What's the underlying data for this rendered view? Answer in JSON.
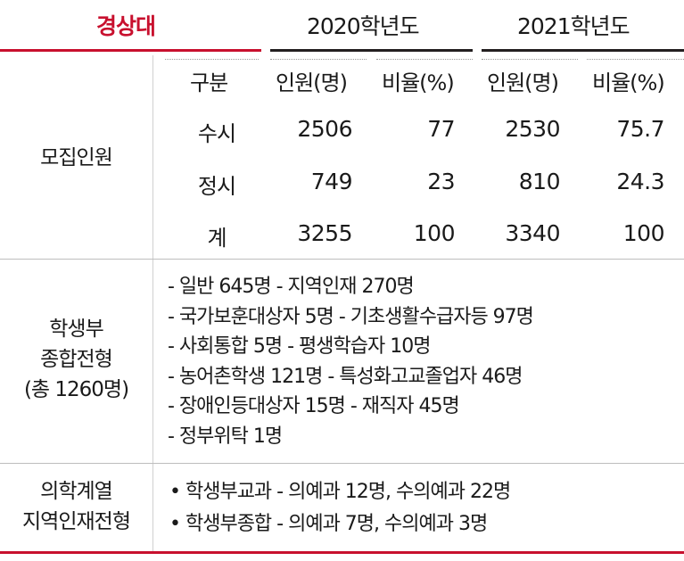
{
  "header": {
    "university": "경상대",
    "year_2020": "2020학년도",
    "year_2021": "2021학년도"
  },
  "columns": {
    "division": "구분",
    "count_2020": "인원(명)",
    "ratio_2020": "비율(%)",
    "count_2021": "인원(명)",
    "ratio_2021": "비율(%)"
  },
  "recruitment": {
    "label": "모집인원",
    "rows": [
      {
        "division": "수시",
        "count_2020": "2506",
        "ratio_2020": "77",
        "count_2021": "2530",
        "ratio_2021": "75.7"
      },
      {
        "division": "정시",
        "count_2020": "749",
        "ratio_2020": "23",
        "count_2021": "810",
        "ratio_2021": "24.3"
      },
      {
        "division": "계",
        "count_2020": "3255",
        "ratio_2020": "100",
        "count_2021": "3340",
        "ratio_2021": "100"
      }
    ]
  },
  "comprehensive": {
    "label_line1": "학생부",
    "label_line2": "종합전형",
    "label_line3": "(총 1260명)",
    "items": [
      "- 일반 645명  - 지역인재 270명",
      "- 국가보훈대상자 5명  - 기초생활수급자등 97명",
      "- 사회통합 5명  - 평생학습자 10명",
      "- 농어촌학생 121명  - 특성화고교졸업자 46명",
      "- 장애인등대상자 15명  - 재직자 45명",
      "- 정부위탁 1명"
    ]
  },
  "medical": {
    "label_line1": "의학계열",
    "label_line2": "지역인재전형",
    "items": [
      "• 학생부교과 - 의예과 12명, 수의예과 22명",
      "• 학생부종합 - 의예과 7명, 수의예과 3명"
    ]
  },
  "colors": {
    "accent_red": "#c8102e",
    "dark_line": "#231f20",
    "text": "#1a1a1a"
  }
}
